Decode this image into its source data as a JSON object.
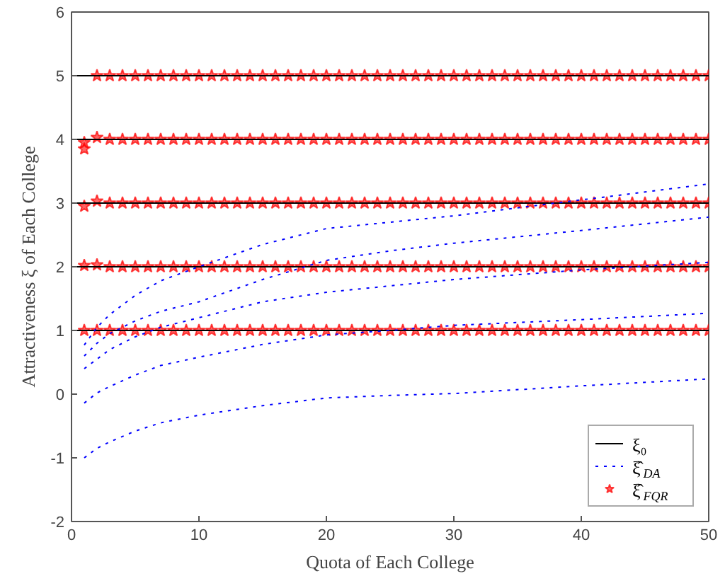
{
  "chart_data": {
    "type": "scatter",
    "xlabel": "Quota of Each College",
    "ylabel": "Attractiveness ξ of Each College",
    "xlim": [
      0,
      50
    ],
    "ylim": [
      -2,
      6
    ],
    "xticks": [
      0,
      10,
      20,
      30,
      40,
      50
    ],
    "yticks": [
      -2,
      -1,
      0,
      1,
      2,
      3,
      4,
      5,
      6
    ],
    "grid": false,
    "legend": "bottom right",
    "x": [
      1,
      2,
      3,
      4,
      5,
      6,
      7,
      8,
      9,
      10,
      11,
      12,
      13,
      14,
      15,
      16,
      17,
      18,
      19,
      20,
      21,
      22,
      23,
      24,
      25,
      26,
      27,
      28,
      29,
      30,
      31,
      32,
      33,
      34,
      35,
      36,
      37,
      38,
      39,
      40,
      41,
      42,
      43,
      44,
      45,
      46,
      47,
      48,
      49,
      50
    ],
    "series": [
      {
        "name": "ξ₀",
        "type": "line",
        "color": "#000000",
        "line_style": "solid",
        "x": [
          0,
          50
        ],
        "values": [
          1,
          1
        ]
      },
      {
        "type": "line",
        "color": "#000000",
        "line_style": "solid",
        "x": [
          0,
          50
        ],
        "values": [
          2,
          2
        ]
      },
      {
        "type": "line",
        "color": "#000000",
        "line_style": "solid",
        "x": [
          0,
          50
        ],
        "values": [
          3,
          3
        ]
      },
      {
        "type": "line",
        "color": "#000000",
        "line_style": "solid",
        "x": [
          0,
          50
        ],
        "values": [
          4,
          4
        ]
      },
      {
        "type": "line",
        "color": "#000000",
        "line_style": "solid",
        "x": [
          0,
          50
        ],
        "values": [
          5,
          5
        ]
      },
      {
        "name": "ξ̂$_{DA}$",
        "type": "line",
        "color": "#0000ff",
        "line_style": "dotted",
        "x": [
          1,
          2,
          3,
          5,
          7,
          10,
          15,
          20,
          25,
          30,
          40,
          50
        ],
        "values": [
          0.77,
          1.05,
          1.25,
          1.55,
          1.78,
          2.0,
          2.35,
          2.6,
          2.7,
          2.8,
          3.05,
          3.3
        ]
      },
      {
        "type": "line",
        "color": "#0000ff",
        "line_style": "dotted",
        "x": [
          1,
          2,
          3,
          5,
          7,
          10,
          15,
          20,
          25,
          30,
          40,
          50
        ],
        "values": [
          0.6,
          0.8,
          0.95,
          1.15,
          1.3,
          1.45,
          1.8,
          2.1,
          2.25,
          2.37,
          2.57,
          2.78
        ]
      },
      {
        "type": "line",
        "color": "#0000ff",
        "line_style": "dotted",
        "x": [
          1,
          2,
          3,
          5,
          7,
          10,
          15,
          20,
          25,
          30,
          40,
          50
        ],
        "values": [
          0.4,
          0.55,
          0.7,
          0.9,
          1.05,
          1.2,
          1.45,
          1.6,
          1.7,
          1.8,
          1.95,
          2.07
        ]
      },
      {
        "type": "line",
        "color": "#0000ff",
        "line_style": "dotted",
        "x": [
          1,
          2,
          3,
          5,
          7,
          10,
          15,
          20,
          25,
          30,
          40,
          50
        ],
        "values": [
          -0.14,
          0.02,
          0.12,
          0.3,
          0.45,
          0.58,
          0.78,
          0.93,
          1.0,
          1.08,
          1.17,
          1.27
        ]
      },
      {
        "type": "line",
        "color": "#0000ff",
        "line_style": "dotted",
        "x": [
          1,
          2,
          3,
          5,
          7,
          10,
          15,
          20,
          25,
          30,
          40,
          50
        ],
        "values": [
          -1.0,
          -0.85,
          -0.75,
          -0.58,
          -0.45,
          -0.33,
          -0.18,
          -0.06,
          -0.02,
          0.01,
          0.13,
          0.24
        ]
      },
      {
        "name": "ξ̂$_{FQR}$",
        "color": "#ff0000",
        "marker": "star",
        "values": [
          1,
          1,
          1,
          1,
          1,
          1,
          1,
          1,
          1,
          1,
          1,
          1,
          1,
          1,
          1,
          1,
          1,
          1,
          1,
          1,
          1,
          1,
          1,
          1,
          1,
          1,
          1,
          1,
          1,
          1,
          1,
          1,
          1,
          1,
          1,
          1,
          1,
          1,
          1,
          1,
          1,
          1,
          1,
          1,
          1,
          1,
          1,
          1,
          1,
          1
        ]
      },
      {
        "color": "#ff0000",
        "marker": "star",
        "values": [
          2.02,
          2.03,
          2,
          2,
          2,
          2,
          2,
          2,
          2,
          2,
          2,
          2,
          2,
          2,
          2,
          2,
          2,
          2,
          2,
          2,
          2,
          2,
          2,
          2,
          2,
          2,
          2,
          2,
          2,
          2,
          2,
          2,
          2,
          2,
          2,
          2,
          2,
          2,
          2,
          2,
          2,
          2,
          2,
          2,
          2,
          2,
          2,
          2,
          2,
          2
        ]
      },
      {
        "color": "#ff0000",
        "marker": "star",
        "values": [
          2.95,
          3.03,
          3,
          3,
          3,
          3,
          3,
          3,
          3,
          3,
          3,
          3,
          3,
          3,
          3,
          3,
          3,
          3,
          3,
          3,
          3,
          3,
          3,
          3,
          3,
          3,
          3,
          3,
          3,
          3,
          3,
          3,
          3,
          3,
          3,
          3,
          3,
          3,
          3,
          3,
          3,
          3,
          3,
          3,
          3,
          3,
          3,
          3,
          3,
          3
        ]
      },
      {
        "color": "#ff0000",
        "marker": "star",
        "values": [
          3.95,
          4.03,
          4,
          4,
          4,
          4,
          4,
          4,
          4,
          4,
          4,
          4,
          4,
          4,
          4,
          4,
          4,
          4,
          4,
          4,
          4,
          4,
          4,
          4,
          4,
          4,
          4,
          4,
          4,
          4,
          4,
          4,
          4,
          4,
          4,
          4,
          4,
          4,
          4,
          4,
          4,
          4,
          4,
          4,
          4,
          4,
          4,
          4,
          4,
          4
        ]
      },
      {
        "color": "#ff0000",
        "marker": "star",
        "values": [
          3.85,
          5,
          5,
          5,
          5,
          5,
          5,
          5,
          5,
          5,
          5,
          5,
          5,
          5,
          5,
          5,
          5,
          5,
          5,
          5,
          5,
          5,
          5,
          5,
          5,
          5,
          5,
          5,
          5,
          5,
          5,
          5,
          5,
          5,
          5,
          5,
          5,
          5,
          5,
          5,
          5,
          5,
          5,
          5,
          5,
          5,
          5,
          5,
          5,
          5
        ]
      }
    ]
  }
}
